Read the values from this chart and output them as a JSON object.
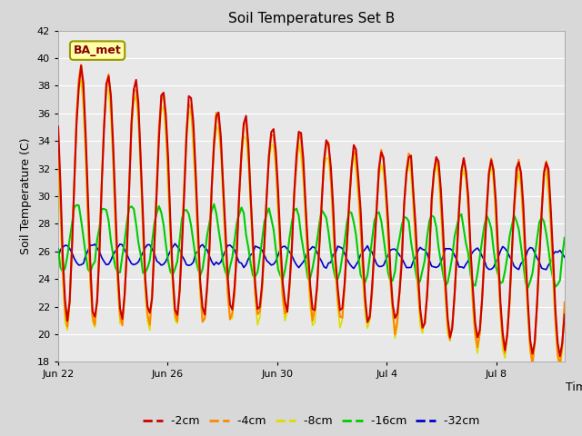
{
  "title": "Soil Temperatures Set B",
  "xlabel": "Time",
  "ylabel": "Soil Temperature (C)",
  "ylim": [
    18,
    42
  ],
  "yticks": [
    18,
    20,
    22,
    24,
    26,
    28,
    30,
    32,
    34,
    36,
    38,
    40,
    42
  ],
  "colors": {
    "-2cm": "#cc0000",
    "-4cm": "#ff8800",
    "-8cm": "#dddd00",
    "-16cm": "#00cc00",
    "-32cm": "#0000cc"
  },
  "legend_labels": [
    "-2cm",
    "-4cm",
    "-8cm",
    "-16cm",
    "-32cm"
  ],
  "annotation_text": "BA_met",
  "annotation_fg": "#880000",
  "annotation_bg": "#ffffaa",
  "annotation_border": "#999900",
  "fig_bg_color": "#d8d8d8",
  "plot_bg_color": "#e8e8e8",
  "xtick_labels": [
    "Jun 22",
    "Jun 26",
    "Jun 30",
    "Jul 4",
    "Jul 8"
  ],
  "xtick_positions": [
    0,
    4,
    8,
    12,
    16
  ],
  "xlim": [
    0,
    18.5
  ]
}
